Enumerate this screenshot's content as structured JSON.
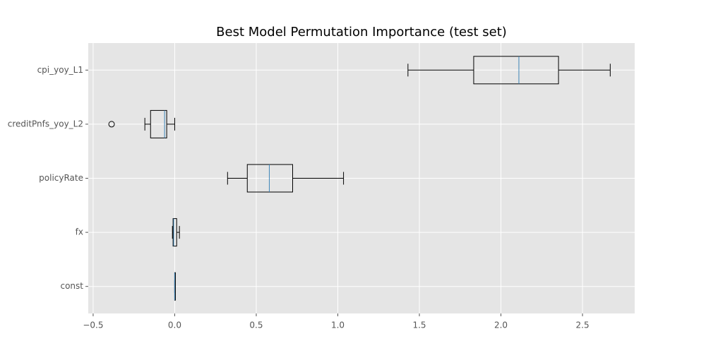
{
  "chart_data": {
    "type": "boxplot",
    "orientation": "horizontal",
    "title": "Best Model Permutation Importance (test set)",
    "categories": [
      "const",
      "fx",
      "policyRate",
      "creditPnfs_yoy_L2",
      "cpi_yoy_L1"
    ],
    "boxes": [
      {
        "low": 0,
        "q1": 0,
        "median": 0,
        "q3": 0,
        "high": 0,
        "outliers": []
      },
      {
        "low": -0.014,
        "q1": -0.01,
        "median": -0.006,
        "q3": 0.012,
        "high": 0.029,
        "outliers": []
      },
      {
        "low": 0.324,
        "q1": 0.445,
        "median": 0.58,
        "q3": 0.723,
        "high": 1.035,
        "outliers": []
      },
      {
        "low": -0.183,
        "q1": -0.148,
        "median": -0.062,
        "q3": -0.049,
        "high": 0,
        "outliers": [
          -0.387
        ]
      },
      {
        "low": 1.43,
        "q1": 1.833,
        "median": 2.11,
        "q3": 2.353,
        "high": 2.67,
        "outliers": []
      }
    ],
    "box_color": "#000000",
    "median_color": "#3d85b8",
    "background": "#e5e5e5",
    "xlim": [
      -0.53,
      2.82
    ],
    "xticks": [
      {
        "value": -0.5,
        "label": "−0.5"
      },
      {
        "value": 0,
        "label": "0.0"
      },
      0.5,
      {
        "value": 1,
        "label": "1.0"
      },
      1.5,
      {
        "value": 2,
        "label": "2.0"
      },
      2.5
    ],
    "grid": true
  }
}
